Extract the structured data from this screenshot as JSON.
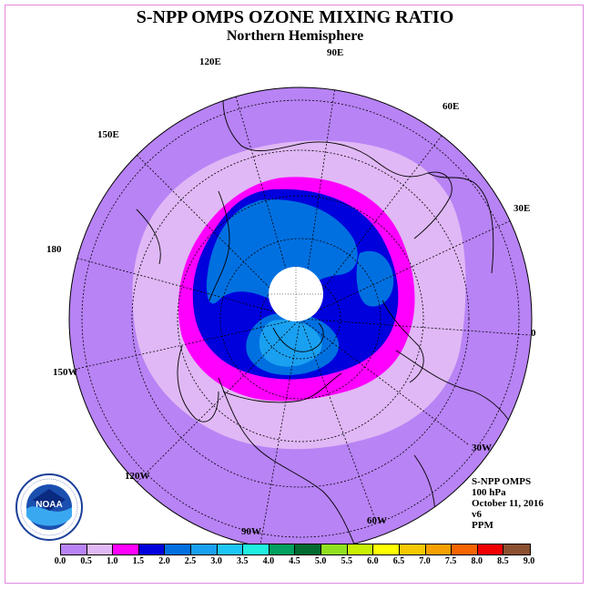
{
  "title": "S-NPP OMPS OZONE MIXING RATIO",
  "subtitle": "Northern Hemisphere",
  "longitude_labels": [
    "90E",
    "60E",
    "30E",
    "0",
    "30W",
    "60W",
    "90W",
    "120W",
    "150W",
    "180",
    "150E",
    "120E"
  ],
  "info": {
    "instrument": "S-NPP OMPS",
    "level": "100 hPa",
    "date": "October 11, 2016",
    "version": "v6",
    "units": "PPM"
  },
  "logo_text": "NOAA",
  "colorbar": {
    "ticks": [
      "0.0",
      "0.5",
      "1.0",
      "1.5",
      "2.0",
      "2.5",
      "3.0",
      "3.5",
      "4.0",
      "4.5",
      "5.0",
      "5.5",
      "6.0",
      "6.5",
      "7.0",
      "7.5",
      "8.0",
      "8.5",
      "9.0"
    ],
    "colors": [
      "#b883f5",
      "#e0b8f5",
      "#ff00ff",
      "#0000dd",
      "#0070e0",
      "#1aa0f0",
      "#1ec6f5",
      "#20eee0",
      "#00a060",
      "#006a30",
      "#90e020",
      "#c8f000",
      "#ffff00",
      "#f5c800",
      "#f5a000",
      "#f56400",
      "#f00000",
      "#8a5030"
    ]
  },
  "colors": {
    "band_0_0_5": "#b883f5",
    "band_0_5_1_0": "#e0b8f5",
    "band_1_0_1_5": "#ff00ff",
    "band_1_5_2_0": "#0000dd",
    "band_2_0_2_5": "#0070e0",
    "band_2_5_3_0": "#1aa0f0",
    "polar_gap": "#ffffff",
    "frame": "#e08ae0"
  }
}
